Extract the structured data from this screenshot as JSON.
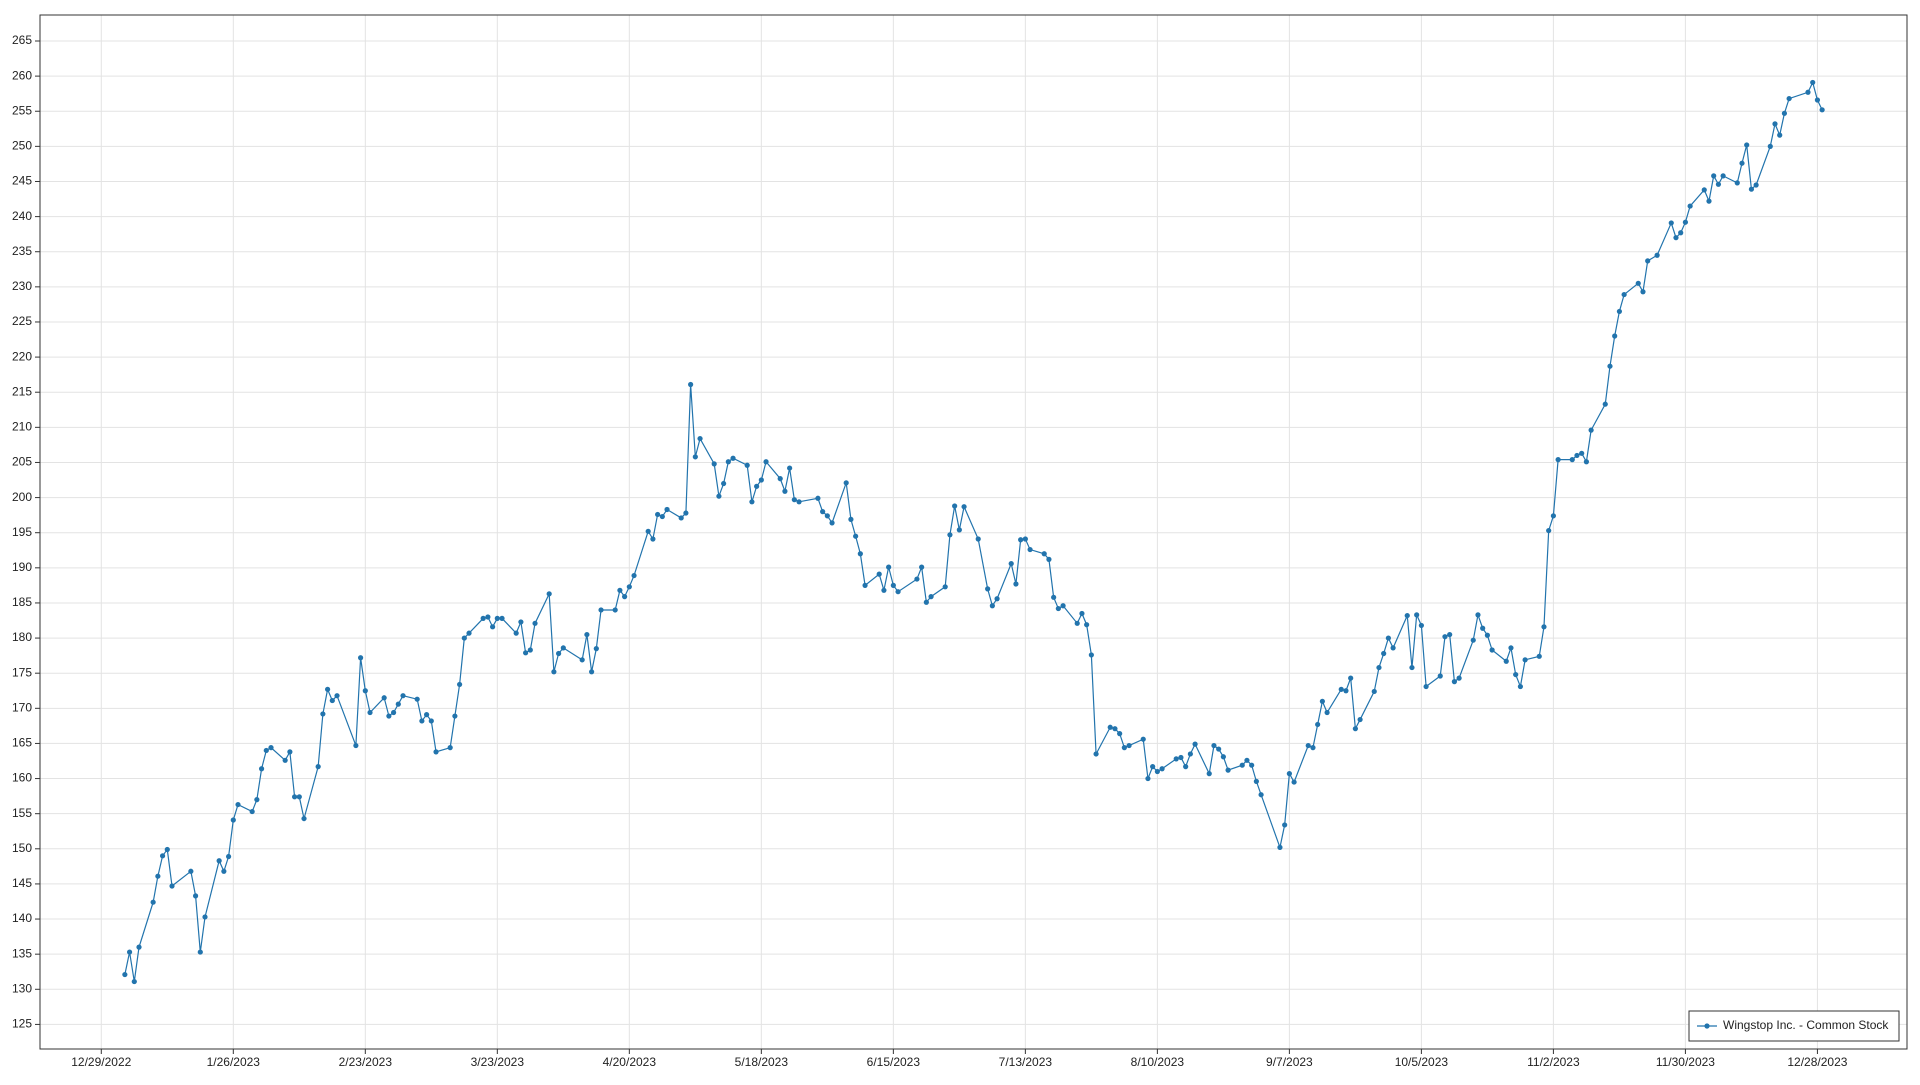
{
  "chart_data": {
    "type": "line",
    "x": [
      "1/3/2023",
      "1/4/2023",
      "1/5/2023",
      "1/6/2023",
      "1/9/2023",
      "1/10/2023",
      "1/11/2023",
      "1/12/2023",
      "1/13/2023",
      "1/17/2023",
      "1/18/2023",
      "1/19/2023",
      "1/20/2023",
      "1/23/2023",
      "1/24/2023",
      "1/25/2023",
      "1/26/2023",
      "1/27/2023",
      "1/30/2023",
      "1/31/2023",
      "2/1/2023",
      "2/2/2023",
      "2/3/2023",
      "2/6/2023",
      "2/7/2023",
      "2/8/2023",
      "2/9/2023",
      "2/10/2023",
      "2/13/2023",
      "2/14/2023",
      "2/15/2023",
      "2/16/2023",
      "2/17/2023",
      "2/21/2023",
      "2/22/2023",
      "2/23/2023",
      "2/24/2023",
      "2/27/2023",
      "2/28/2023",
      "3/1/2023",
      "3/2/2023",
      "3/3/2023",
      "3/6/2023",
      "3/7/2023",
      "3/8/2023",
      "3/9/2023",
      "3/10/2023",
      "3/13/2023",
      "3/14/2023",
      "3/15/2023",
      "3/16/2023",
      "3/17/2023",
      "3/20/2023",
      "3/21/2023",
      "3/22/2023",
      "3/23/2023",
      "3/24/2023",
      "3/27/2023",
      "3/28/2023",
      "3/29/2023",
      "3/30/2023",
      "3/31/2023",
      "4/3/2023",
      "4/4/2023",
      "4/5/2023",
      "4/6/2023",
      "4/10/2023",
      "4/11/2023",
      "4/12/2023",
      "4/13/2023",
      "4/14/2023",
      "4/17/2023",
      "4/18/2023",
      "4/19/2023",
      "4/20/2023",
      "4/21/2023",
      "4/24/2023",
      "4/25/2023",
      "4/26/2023",
      "4/27/2023",
      "4/28/2023",
      "5/1/2023",
      "5/2/2023",
      "5/3/2023",
      "5/4/2023",
      "5/5/2023",
      "5/8/2023",
      "5/9/2023",
      "5/10/2023",
      "5/11/2023",
      "5/12/2023",
      "5/15/2023",
      "5/16/2023",
      "5/17/2023",
      "5/18/2023",
      "5/19/2023",
      "5/22/2023",
      "5/23/2023",
      "5/24/2023",
      "5/25/2023",
      "5/26/2023",
      "5/30/2023",
      "5/31/2023",
      "6/1/2023",
      "6/2/2023",
      "6/5/2023",
      "6/6/2023",
      "6/7/2023",
      "6/8/2023",
      "6/9/2023",
      "6/12/2023",
      "6/13/2023",
      "6/14/2023",
      "6/15/2023",
      "6/16/2023",
      "6/20/2023",
      "6/21/2023",
      "6/22/2023",
      "6/23/2023",
      "6/26/2023",
      "6/27/2023",
      "6/28/2023",
      "6/29/2023",
      "6/30/2023",
      "7/3/2023",
      "7/5/2023",
      "7/6/2023",
      "7/7/2023",
      "7/10/2023",
      "7/11/2023",
      "7/12/2023",
      "7/13/2023",
      "7/14/2023",
      "7/17/2023",
      "7/18/2023",
      "7/19/2023",
      "7/20/2023",
      "7/21/2023",
      "7/24/2023",
      "7/25/2023",
      "7/26/2023",
      "7/27/2023",
      "7/28/2023",
      "7/31/2023",
      "8/1/2023",
      "8/2/2023",
      "8/3/2023",
      "8/4/2023",
      "8/7/2023",
      "8/8/2023",
      "8/9/2023",
      "8/10/2023",
      "8/11/2023",
      "8/14/2023",
      "8/15/2023",
      "8/16/2023",
      "8/17/2023",
      "8/18/2023",
      "8/21/2023",
      "8/22/2023",
      "8/23/2023",
      "8/24/2023",
      "8/25/2023",
      "8/28/2023",
      "8/29/2023",
      "8/30/2023",
      "8/31/2023",
      "9/1/2023",
      "9/5/2023",
      "9/6/2023",
      "9/7/2023",
      "9/8/2023",
      "9/11/2023",
      "9/12/2023",
      "9/13/2023",
      "9/14/2023",
      "9/15/2023",
      "9/18/2023",
      "9/19/2023",
      "9/20/2023",
      "9/21/2023",
      "9/22/2023",
      "9/25/2023",
      "9/26/2023",
      "9/27/2023",
      "9/28/2023",
      "9/29/2023",
      "10/2/2023",
      "10/3/2023",
      "10/4/2023",
      "10/5/2023",
      "10/6/2023",
      "10/9/2023",
      "10/10/2023",
      "10/11/2023",
      "10/12/2023",
      "10/13/2023",
      "10/16/2023",
      "10/17/2023",
      "10/18/2023",
      "10/19/2023",
      "10/20/2023",
      "10/23/2023",
      "10/24/2023",
      "10/25/2023",
      "10/26/2023",
      "10/27/2023",
      "10/30/2023",
      "10/31/2023",
      "11/1/2023",
      "11/2/2023",
      "11/3/2023",
      "11/6/2023",
      "11/7/2023",
      "11/8/2023",
      "11/9/2023",
      "11/10/2023",
      "11/13/2023",
      "11/14/2023",
      "11/15/2023",
      "11/16/2023",
      "11/17/2023",
      "11/20/2023",
      "11/21/2023",
      "11/22/2023",
      "11/24/2023",
      "11/27/2023",
      "11/28/2023",
      "11/29/2023",
      "11/30/2023",
      "12/1/2023",
      "12/4/2023",
      "12/5/2023",
      "12/6/2023",
      "12/7/2023",
      "12/8/2023",
      "12/11/2023",
      "12/12/2023",
      "12/13/2023",
      "12/14/2023",
      "12/15/2023",
      "12/18/2023",
      "12/19/2023",
      "12/20/2023",
      "12/21/2023",
      "12/22/2023",
      "12/26/2023",
      "12/27/2023",
      "12/28/2023",
      "12/29/2023"
    ],
    "series": [
      {
        "name": "Wingstop Inc. - Common Stock",
        "color": "#2274ad",
        "values": [
          132.1,
          135.3,
          131.1,
          136.0,
          142.4,
          146.1,
          149.0,
          149.9,
          144.7,
          146.8,
          143.3,
          135.3,
          140.3,
          148.3,
          146.8,
          148.9,
          154.1,
          156.3,
          155.3,
          157.0,
          161.4,
          164.0,
          164.4,
          162.6,
          163.8,
          157.4,
          157.4,
          154.3,
          161.7,
          169.2,
          172.7,
          171.1,
          171.8,
          164.7,
          177.2,
          172.5,
          169.4,
          171.5,
          168.9,
          169.4,
          170.6,
          171.8,
          171.3,
          168.2,
          169.1,
          168.2,
          163.8,
          164.4,
          168.9,
          173.4,
          180.0,
          180.7,
          182.8,
          183.0,
          181.6,
          182.8,
          182.8,
          180.7,
          182.3,
          177.9,
          178.3,
          182.1,
          186.3,
          175.2,
          177.8,
          178.6,
          176.9,
          180.5,
          175.2,
          178.5,
          184.0,
          184.0,
          186.8,
          185.9,
          187.3,
          188.9,
          195.2,
          194.1,
          197.6,
          197.3,
          198.3,
          197.1,
          197.8,
          216.1,
          205.8,
          208.4,
          204.8,
          200.2,
          202.0,
          205.1,
          205.6,
          204.6,
          199.4,
          201.6,
          202.5,
          205.1,
          202.7,
          200.9,
          204.2,
          199.7,
          199.4,
          199.9,
          198.0,
          197.4,
          196.4,
          202.1,
          196.9,
          194.5,
          192.0,
          187.5,
          189.1,
          186.8,
          190.1,
          187.5,
          186.6,
          188.4,
          190.1,
          185.1,
          185.9,
          187.3,
          194.7,
          198.8,
          195.4,
          198.7,
          194.1,
          187.0,
          184.6,
          185.6,
          190.6,
          187.7,
          194.0,
          194.1,
          192.6,
          192.0,
          191.2,
          185.8,
          184.2,
          184.6,
          182.1,
          183.5,
          181.9,
          177.6,
          163.5,
          167.3,
          167.1,
          166.4,
          164.4,
          164.7,
          165.6,
          160.0,
          161.7,
          161.0,
          161.4,
          162.8,
          163.0,
          161.7,
          163.5,
          164.9,
          160.7,
          164.7,
          164.2,
          163.1,
          161.2,
          161.9,
          162.6,
          161.9,
          159.6,
          157.7,
          150.2,
          153.4,
          160.7,
          159.5,
          164.7,
          164.4,
          167.7,
          171.0,
          169.4,
          172.7,
          172.5,
          174.3,
          167.1,
          168.4,
          172.4,
          175.8,
          177.8,
          180.0,
          178.6,
          183.2,
          175.8,
          183.3,
          181.8,
          173.1,
          174.6,
          180.2,
          180.5,
          173.8,
          174.3,
          179.7,
          183.3,
          181.4,
          180.4,
          178.3,
          176.7,
          178.6,
          174.8,
          173.1,
          176.9,
          177.4,
          181.6,
          195.3,
          197.4,
          205.4,
          205.4,
          206.0,
          206.3,
          205.1,
          209.6,
          213.3,
          218.7,
          223.0,
          226.5,
          228.9,
          230.5,
          229.3,
          233.7,
          234.5,
          239.1,
          237.0,
          237.7,
          239.2,
          241.5,
          243.8,
          242.2,
          245.8,
          244.6,
          245.8,
          244.8,
          247.6,
          250.2,
          243.9,
          244.5,
          250.0,
          253.2,
          251.6,
          254.7,
          256.8,
          257.7,
          259.1,
          256.6,
          255.2
        ]
      }
    ],
    "xlim": [
      "12/16/2022",
      "1/16/2024"
    ],
    "xticks": [
      "12/29/2022",
      "1/26/2023",
      "2/23/2023",
      "3/23/2023",
      "4/20/2023",
      "5/18/2023",
      "6/15/2023",
      "7/13/2023",
      "8/10/2023",
      "9/7/2023",
      "10/5/2023",
      "11/2/2023",
      "11/30/2023",
      "12/28/2023"
    ],
    "ylim": [
      121.5,
      268.7
    ],
    "yticks": [
      125,
      130,
      135,
      140,
      145,
      150,
      155,
      160,
      165,
      170,
      175,
      180,
      185,
      190,
      195,
      200,
      205,
      210,
      215,
      220,
      225,
      230,
      235,
      240,
      245,
      250,
      255,
      260,
      265
    ],
    "grid": true,
    "legend": "bottom-right"
  }
}
